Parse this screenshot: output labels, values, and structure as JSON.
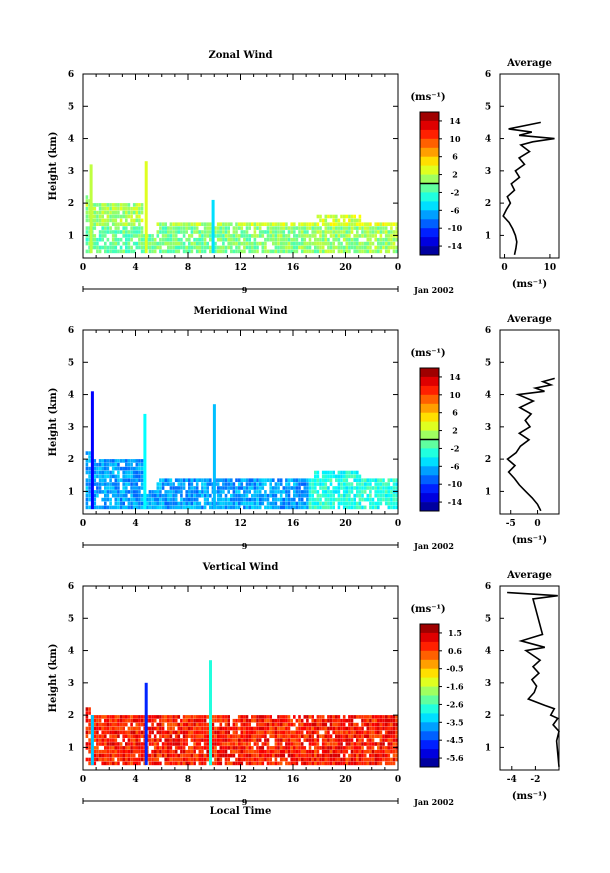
{
  "chart_data": [
    {
      "type": "heatmap",
      "title": "Zonal Wind",
      "ylabel": "Height (km)",
      "xlabel": "",
      "x_ticks": [
        "0",
        "4",
        "8",
        "12",
        "16",
        "20",
        "0"
      ],
      "x_range": [
        0,
        24
      ],
      "y_ticks": [
        "1",
        "2",
        "3",
        "4",
        "5",
        "6"
      ],
      "ylim": [
        0.3,
        6
      ],
      "date_marker": "9",
      "date_label": "Jan 2002",
      "colorbar": {
        "unit": "(ms⁻¹)",
        "labels": [
          "14",
          "10",
          "6",
          "2",
          "-2",
          "-6",
          "-10",
          "-14"
        ],
        "range": [
          -16,
          16
        ],
        "zero_line": 0
      },
      "profile": {
        "title": "Average",
        "xlabel": "(ms⁻¹)",
        "x_ticks": [
          "0",
          "10"
        ],
        "xlim": [
          -1,
          12
        ],
        "heights": [
          0.4,
          0.6,
          0.8,
          1.0,
          1.2,
          1.4,
          1.6,
          1.8,
          2.0,
          2.2,
          2.4,
          2.6,
          2.8,
          3.0,
          3.2,
          3.4,
          3.6,
          3.8,
          3.9,
          4.0,
          4.1,
          4.2,
          4.3,
          4.5
        ],
        "values": [
          2.2,
          2.5,
          2.7,
          2.4,
          1.8,
          1.0,
          -0.3,
          0.4,
          1.3,
          0.6,
          2.2,
          1.5,
          3.3,
          2.4,
          4.4,
          3.2,
          5.5,
          3.6,
          6.2,
          11.0,
          3.2,
          6.0,
          0.9,
          8.0
        ]
      }
    },
    {
      "type": "heatmap",
      "title": "Meridional Wind",
      "ylabel": "Height (km)",
      "xlabel": "",
      "x_ticks": [
        "0",
        "4",
        "8",
        "12",
        "16",
        "20",
        "0"
      ],
      "x_range": [
        0,
        24
      ],
      "y_ticks": [
        "1",
        "2",
        "3",
        "4",
        "5",
        "6"
      ],
      "ylim": [
        0.3,
        6
      ],
      "date_marker": "9",
      "date_label": "Jan 2002",
      "colorbar": {
        "unit": "(ms⁻¹)",
        "labels": [
          "14",
          "10",
          "6",
          "2",
          "-2",
          "-6",
          "-10",
          "-14"
        ],
        "range": [
          -16,
          16
        ],
        "zero_line": 0
      },
      "profile": {
        "title": "Average",
        "xlabel": "(ms⁻¹)",
        "x_ticks": [
          "-5",
          "0"
        ],
        "xlim": [
          -7,
          4
        ],
        "heights": [
          0.4,
          0.6,
          0.8,
          1.0,
          1.2,
          1.4,
          1.6,
          1.8,
          2.0,
          2.2,
          2.4,
          2.6,
          2.8,
          3.0,
          3.2,
          3.4,
          3.6,
          3.8,
          4.0,
          4.1,
          4.2,
          4.3,
          4.4,
          4.5
        ],
        "values": [
          0.6,
          0.0,
          -1.0,
          -2.2,
          -3.4,
          -4.3,
          -5.4,
          -4.2,
          -5.6,
          -4.0,
          -3.2,
          -1.6,
          -3.4,
          -1.4,
          -2.3,
          -1.2,
          -3.3,
          -0.8,
          -3.6,
          1.3,
          -0.4,
          2.5,
          1.0,
          3.2
        ]
      }
    },
    {
      "type": "heatmap",
      "title": "Vertical Wind",
      "ylabel": "Height (km)",
      "xlabel": "Local Time",
      "x_ticks": [
        "0",
        "4",
        "8",
        "12",
        "16",
        "20",
        "0"
      ],
      "x_range": [
        0,
        24
      ],
      "y_ticks": [
        "1",
        "2",
        "3",
        "4",
        "5",
        "6"
      ],
      "ylim": [
        0.3,
        6
      ],
      "date_marker": "9",
      "date_label": "Jan 2002",
      "colorbar": {
        "unit": "(ms⁻¹)",
        "labels": [
          "1.5",
          "0.6",
          "-0.5",
          "-1.6",
          "-2.6",
          "-3.5",
          "-4.5",
          "-5.6"
        ],
        "range": [
          -6.1,
          2.0
        ],
        "zero_line": null
      },
      "profile": {
        "title": "Average",
        "xlabel": "(ms⁻¹)",
        "x_ticks": [
          "-4",
          "-2"
        ],
        "xlim": [
          -5,
          0
        ],
        "heights": [
          0.4,
          0.8,
          1.2,
          1.5,
          1.7,
          1.9,
          2.0,
          2.2,
          2.3,
          2.5,
          2.7,
          2.9,
          3.1,
          3.3,
          3.5,
          3.7,
          3.8,
          4.0,
          4.1,
          4.3,
          4.5,
          5.6,
          5.7,
          5.8
        ],
        "values": [
          0.0,
          -0.1,
          -0.2,
          0.0,
          -0.5,
          -0.1,
          -0.7,
          -0.4,
          -1.2,
          -2.6,
          -2.1,
          -1.9,
          -2.3,
          -1.7,
          -2.2,
          -1.6,
          -2.0,
          -2.8,
          -1.2,
          -3.2,
          -1.4,
          -2.2,
          -0.1,
          -4.4
        ]
      }
    }
  ]
}
